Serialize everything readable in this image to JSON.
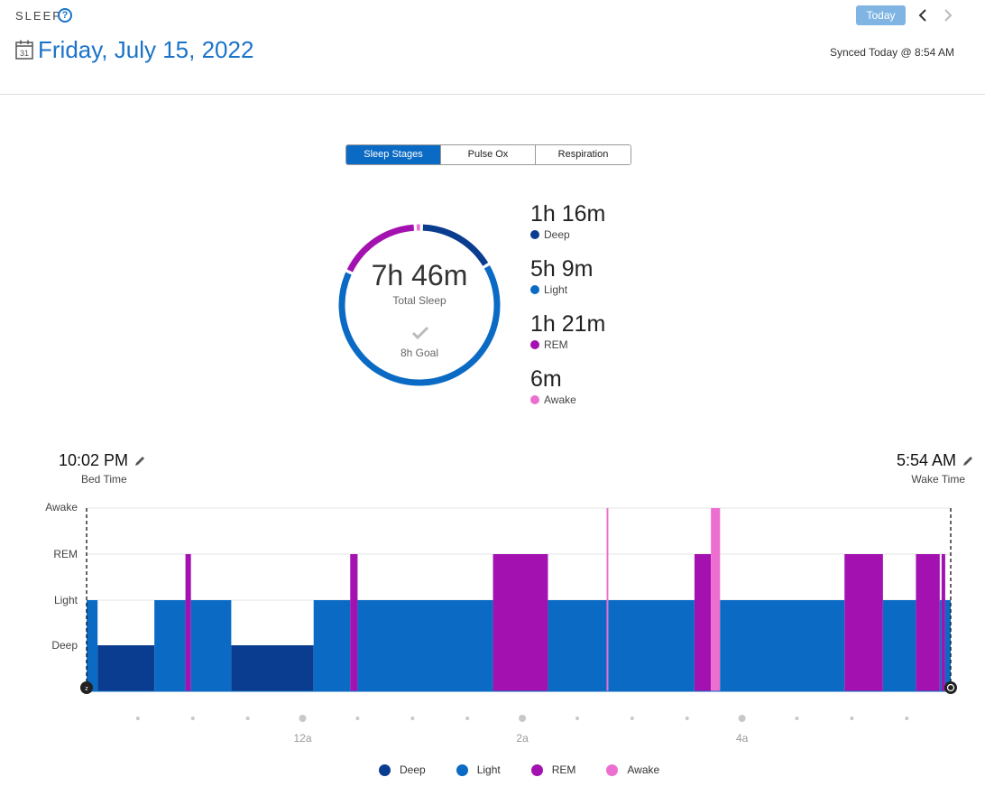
{
  "header": {
    "section_label": "SLEEP",
    "help_glyph": "?",
    "calendar_day": "31",
    "date_title": "Friday, July 15, 2022",
    "today_label": "Today",
    "synced_text": "Synced Today @ 8:54 AM"
  },
  "tabs": [
    {
      "label": "Sleep Stages",
      "active": true
    },
    {
      "label": "Pulse Ox",
      "active": false
    },
    {
      "label": "Respiration",
      "active": false
    }
  ],
  "summary": {
    "total_value": "7h 46m",
    "total_label": "Total Sleep",
    "goal_label": "8h Goal",
    "stages": [
      {
        "value": "1h 16m",
        "label": "Deep",
        "color": "#0a3d8f"
      },
      {
        "value": "5h 9m",
        "label": "Light",
        "color": "#0b6bc4"
      },
      {
        "value": "1h 21m",
        "label": "REM",
        "color": "#a312b0"
      },
      {
        "value": "6m",
        "label": "Awake",
        "color": "#ec6fd0"
      }
    ]
  },
  "times": {
    "bed_time": "10:02 PM",
    "bed_label": "Bed Time",
    "wake_time": "5:54 AM",
    "wake_label": "Wake Time"
  },
  "chart_data": {
    "type": "area",
    "title": "",
    "levels": [
      "Deep",
      "Light",
      "REM",
      "Awake"
    ],
    "x_axis_labels": [
      {
        "label": "12a",
        "hour": 24
      },
      {
        "label": "2a",
        "hour": 26
      },
      {
        "label": "4a",
        "hour": 28
      }
    ],
    "start_hour": 22.033,
    "end_hour": 29.9,
    "colors": {
      "Deep": "#0a3d8f",
      "Light": "#0b6bc4",
      "REM": "#a312b0",
      "Awake": "#ec6fd0"
    },
    "segments": [
      {
        "stage": "Light",
        "start": 22.033,
        "end": 22.133
      },
      {
        "stage": "Deep",
        "start": 22.133,
        "end": 22.65
      },
      {
        "stage": "Light",
        "start": 22.65,
        "end": 22.933
      },
      {
        "stage": "REM",
        "start": 22.933,
        "end": 22.983
      },
      {
        "stage": "Light",
        "start": 22.983,
        "end": 23.35
      },
      {
        "stage": "Deep",
        "start": 23.35,
        "end": 24.1
      },
      {
        "stage": "Light",
        "start": 24.1,
        "end": 24.433
      },
      {
        "stage": "REM",
        "start": 24.433,
        "end": 24.5
      },
      {
        "stage": "Light",
        "start": 24.5,
        "end": 25.733
      },
      {
        "stage": "REM",
        "start": 25.733,
        "end": 26.233
      },
      {
        "stage": "Light",
        "start": 26.233,
        "end": 26.767
      },
      {
        "stage": "Awake",
        "start": 26.767,
        "end": 26.783
      },
      {
        "stage": "Light",
        "start": 26.783,
        "end": 27.567
      },
      {
        "stage": "REM",
        "start": 27.567,
        "end": 27.717
      },
      {
        "stage": "Awake",
        "start": 27.717,
        "end": 27.8
      },
      {
        "stage": "Light",
        "start": 27.8,
        "end": 28.933
      },
      {
        "stage": "REM",
        "start": 28.933,
        "end": 29.283
      },
      {
        "stage": "Light",
        "start": 29.283,
        "end": 29.583
      },
      {
        "stage": "REM",
        "start": 29.583,
        "end": 29.8
      },
      {
        "stage": "Light",
        "start": 29.8,
        "end": 29.817
      },
      {
        "stage": "REM",
        "start": 29.817,
        "end": 29.85
      },
      {
        "stage": "Light",
        "start": 29.85,
        "end": 29.9
      }
    ]
  },
  "legend": [
    {
      "label": "Deep",
      "color": "#0a3d8f"
    },
    {
      "label": "Light",
      "color": "#0b6bc4"
    },
    {
      "label": "REM",
      "color": "#a312b0"
    },
    {
      "label": "Awake",
      "color": "#ec6fd0"
    }
  ]
}
